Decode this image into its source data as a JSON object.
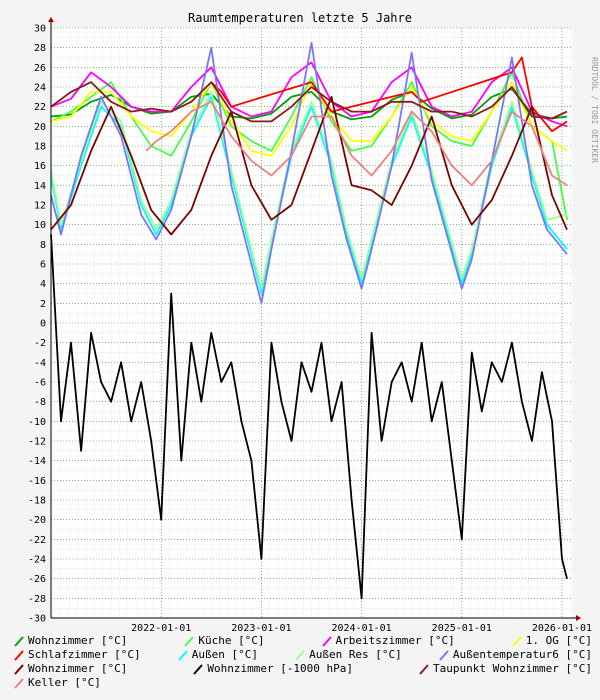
{
  "chart_data": {
    "type": "line",
    "title": "Raumtemperaturen letzte 5 Jahre",
    "side_label": "RRDTOOL / TOBI OETIKER",
    "ylim": [
      -30,
      30
    ],
    "y_ticks": [
      "-30",
      "-28",
      "-26",
      "-24",
      "-22",
      "-20",
      "-18",
      "-16",
      "-14",
      "-12",
      "-10",
      "-8",
      "-6",
      "-4",
      "-2",
      "0",
      "2",
      "4",
      "6",
      "8",
      "10",
      "12",
      "14",
      "16",
      "18",
      "20",
      "22",
      "24",
      "26",
      "28",
      "30"
    ],
    "xlim": [
      2020.9,
      2026.1
    ],
    "x_ticks": [
      {
        "x": 2022.0,
        "label": "2022-01-01"
      },
      {
        "x": 2023.0,
        "label": "2023-01-01"
      },
      {
        "x": 2024.0,
        "label": "2024-01-01"
      },
      {
        "x": 2025.0,
        "label": "2025-01-01"
      },
      {
        "x": 2026.0,
        "label": "2026-01-01"
      }
    ],
    "legend_rows": [
      [
        0,
        1,
        2,
        3
      ],
      [
        4,
        5,
        6,
        7
      ],
      [
        8,
        9,
        10
      ],
      [
        11
      ]
    ],
    "series": [
      {
        "name": "Wohnzimmer [°C]",
        "color": "#00a000",
        "x": [
          2020.9,
          2021.1,
          2021.3,
          2021.5,
          2021.7,
          2021.9,
          2022.1,
          2022.3,
          2022.5,
          2022.7,
          2022.9,
          2023.1,
          2023.3,
          2023.5,
          2023.7,
          2023.9,
          2024.1,
          2024.3,
          2024.5,
          2024.7,
          2024.9,
          2025.1,
          2025.3,
          2025.5,
          2025.7,
          2025.9,
          2026.05
        ],
        "y": [
          21.0,
          21.2,
          22.5,
          23.2,
          22.0,
          21.3,
          21.5,
          23.0,
          23.3,
          21.0,
          20.8,
          21.3,
          23.0,
          23.5,
          21.5,
          20.7,
          21.0,
          22.7,
          23.5,
          21.8,
          20.8,
          21.2,
          23.0,
          23.8,
          21.3,
          20.8,
          21.0
        ]
      },
      {
        "name": "Küche [°C]",
        "color": "#44ff44",
        "x": [
          2020.9,
          2021.1,
          2021.3,
          2021.5,
          2021.7,
          2021.9,
          2022.1,
          2022.3,
          2022.5,
          2022.7,
          2022.9,
          2023.1,
          2023.3,
          2023.5,
          2023.7,
          2023.9,
          2024.1,
          2024.3,
          2024.5,
          2024.7,
          2024.9,
          2025.1,
          2025.3,
          2025.5,
          2025.7,
          2025.9,
          2026.05
        ],
        "y": [
          20.5,
          21.5,
          23.0,
          24.5,
          21.0,
          18.0,
          17.0,
          20.5,
          24.5,
          20.0,
          18.5,
          17.5,
          21.0,
          25.0,
          20.5,
          17.5,
          18.0,
          21.0,
          24.5,
          20.0,
          18.5,
          18.0,
          21.5,
          25.5,
          20.0,
          18.5,
          10.5
        ]
      },
      {
        "name": "Arbeitszimmer [°C]",
        "color": "#ff00ff",
        "x": [
          2020.9,
          2021.1,
          2021.3,
          2021.5,
          2021.7,
          2021.9,
          2022.1,
          2022.3,
          2022.5,
          2022.7,
          2022.9,
          2023.1,
          2023.3,
          2023.5,
          2023.7,
          2023.9,
          2024.1,
          2024.3,
          2024.5,
          2024.7,
          2024.9,
          2025.1,
          2025.3,
          2025.5,
          2025.7,
          2025.9,
          2026.05
        ],
        "y": [
          22.0,
          22.8,
          25.5,
          24.0,
          22.0,
          21.5,
          21.5,
          24.0,
          26.0,
          22.0,
          21.0,
          21.5,
          25.0,
          26.5,
          22.5,
          21.0,
          21.5,
          24.5,
          26.0,
          22.0,
          21.0,
          21.5,
          24.5,
          26.0,
          21.5,
          20.5,
          20.0
        ]
      },
      {
        "name": "1. OG [°C]",
        "color": "#ffff00",
        "x": [
          2020.9,
          2021.1,
          2021.3,
          2021.5,
          2021.7,
          2021.9,
          2022.1,
          2022.3,
          2022.5,
          2022.7,
          2022.9,
          2023.1,
          2023.3,
          2023.5,
          2023.7,
          2023.9,
          2024.1,
          2024.3,
          2024.5,
          2024.7,
          2024.9,
          2025.1,
          2025.3,
          2025.5,
          2025.7,
          2025.9,
          2026.05
        ],
        "y": [
          20.5,
          21.0,
          23.5,
          23.5,
          21.0,
          19.5,
          19.0,
          21.5,
          24.5,
          20.5,
          17.5,
          17.0,
          20.0,
          24.5,
          21.0,
          18.5,
          18.5,
          21.0,
          24.0,
          20.5,
          19.0,
          18.5,
          21.5,
          24.5,
          20.0,
          18.5,
          17.5
        ]
      },
      {
        "name": "Schlafzimmer [°C]",
        "color": "#ff0000",
        "x": [
          2022.5,
          2022.6,
          2022.7,
          2023.5,
          2023.6,
          2023.7,
          2024.5,
          2024.6,
          2025.5,
          2025.6,
          2025.7,
          2025.9,
          2026.05
        ],
        "y": [
          24.5,
          23.5,
          22.0,
          24.5,
          23.0,
          21.5,
          23.5,
          22.5,
          25.5,
          27.0,
          22.0,
          19.5,
          20.5
        ]
      },
      {
        "name": "Außen [°C]",
        "color": "#00ffff",
        "x": [
          2020.9,
          2021.0,
          2021.2,
          2021.4,
          2021.6,
          2021.8,
          2021.95,
          2022.1,
          2022.3,
          2022.5,
          2022.7,
          2022.85,
          2023.0,
          2023.1,
          2023.3,
          2023.5,
          2023.7,
          2023.85,
          2024.0,
          2024.1,
          2024.3,
          2024.5,
          2024.7,
          2024.85,
          2025.0,
          2025.1,
          2025.3,
          2025.5,
          2025.7,
          2025.85,
          2026.05
        ],
        "y": [
          15.0,
          9.5,
          16.0,
          22.0,
          20.0,
          12.0,
          9.0,
          12.0,
          19.0,
          23.0,
          15.0,
          9.0,
          3.0,
          8.0,
          17.0,
          22.0,
          16.0,
          9.0,
          4.0,
          8.0,
          16.0,
          21.0,
          15.0,
          9.5,
          4.0,
          7.0,
          16.0,
          22.0,
          15.0,
          10.0,
          7.5
        ]
      },
      {
        "name": "Außen Res [°C]",
        "color": "#99ff99",
        "x": [
          2020.9,
          2021.0,
          2021.2,
          2021.4,
          2021.6,
          2021.8,
          2021.95,
          2022.1,
          2022.3,
          2022.5,
          2022.7,
          2022.85,
          2023.0,
          2023.1,
          2023.3,
          2023.5,
          2023.7,
          2023.85,
          2024.0,
          2024.1,
          2024.3,
          2024.5,
          2024.7,
          2024.85,
          2025.0,
          2025.1,
          2025.3,
          2025.5,
          2025.7,
          2025.85,
          2026.05
        ],
        "y": [
          15.5,
          10.0,
          16.5,
          22.5,
          20.5,
          12.5,
          9.5,
          12.5,
          19.5,
          23.5,
          15.5,
          9.5,
          3.5,
          8.5,
          17.5,
          22.5,
          16.5,
          9.5,
          4.5,
          8.5,
          16.5,
          21.5,
          15.5,
          10.0,
          4.5,
          7.5,
          16.5,
          22.5,
          15.5,
          10.5,
          11.0
        ]
      },
      {
        "name": "Außentemperatur6 [°C]",
        "color": "#7777ff",
        "x": [
          2020.9,
          2021.0,
          2021.2,
          2021.4,
          2021.6,
          2021.8,
          2021.95,
          2022.1,
          2022.3,
          2022.5,
          2022.7,
          2022.85,
          2023.0,
          2023.1,
          2023.3,
          2023.5,
          2023.7,
          2023.85,
          2024.0,
          2024.1,
          2024.3,
          2024.5,
          2024.7,
          2024.85,
          2025.0,
          2025.1,
          2025.3,
          2025.5,
          2025.7,
          2025.85,
          2026.05
        ],
        "y": [
          13.0,
          9.0,
          17.0,
          23.0,
          19.0,
          11.0,
          8.5,
          11.5,
          19.0,
          28.0,
          14.0,
          8.0,
          2.0,
          7.5,
          17.5,
          28.5,
          15.0,
          8.5,
          3.5,
          7.5,
          16.0,
          27.5,
          14.5,
          9.0,
          3.5,
          6.5,
          16.5,
          27.0,
          14.0,
          9.5,
          7.0
        ]
      },
      {
        "name": "Wohnzimmer [°C]",
        "color": "#800000",
        "x": [
          2020.9,
          2021.1,
          2021.3,
          2021.5,
          2021.7,
          2021.9,
          2022.1,
          2022.3,
          2022.5,
          2022.7,
          2022.9,
          2023.1,
          2023.3,
          2023.5,
          2023.7,
          2023.9,
          2024.1,
          2024.3,
          2024.5,
          2024.7,
          2024.9,
          2025.1,
          2025.3,
          2025.5,
          2025.7,
          2025.9,
          2026.05
        ],
        "y": [
          9.5,
          12.0,
          17.5,
          22.0,
          17.0,
          11.5,
          9.0,
          11.5,
          17.0,
          21.5,
          14.0,
          10.5,
          12.0,
          17.5,
          23.0,
          14.0,
          13.5,
          12.0,
          16.0,
          21.0,
          14.0,
          10.0,
          12.5,
          17.0,
          22.0,
          13.0,
          9.5
        ]
      },
      {
        "name": "Wohnzimmer [-1000 hPa]",
        "color": "#000000",
        "x": [
          2020.9,
          2021.0,
          2021.1,
          2021.2,
          2021.3,
          2021.4,
          2021.5,
          2021.6,
          2021.7,
          2021.8,
          2021.9,
          2022.0,
          2022.1,
          2022.2,
          2022.3,
          2022.4,
          2022.5,
          2022.6,
          2022.7,
          2022.8,
          2022.9,
          2023.0,
          2023.1,
          2023.2,
          2023.3,
          2023.4,
          2023.5,
          2023.6,
          2023.7,
          2023.8,
          2023.9,
          2024.0,
          2024.1,
          2024.2,
          2024.3,
          2024.4,
          2024.5,
          2024.6,
          2024.7,
          2024.8,
          2024.9,
          2025.0,
          2025.1,
          2025.2,
          2025.3,
          2025.4,
          2025.5,
          2025.6,
          2025.7,
          2025.8,
          2025.9,
          2026.0,
          2026.05
        ],
        "y": [
          9.0,
          -10.0,
          -2.0,
          -13.0,
          -1.0,
          -6.0,
          -8.0,
          -4.0,
          -10.0,
          -6.0,
          -12.0,
          -20.0,
          3.0,
          -14.0,
          -2.0,
          -8.0,
          -1.0,
          -6.0,
          -4.0,
          -10.0,
          -14.0,
          -24.0,
          -2.0,
          -8.0,
          -12.0,
          -4.0,
          -7.0,
          -2.0,
          -10.0,
          -6.0,
          -18.0,
          -28.0,
          -1.0,
          -12.0,
          -6.0,
          -4.0,
          -8.0,
          -2.0,
          -10.0,
          -6.0,
          -14.0,
          -22.0,
          -3.0,
          -9.0,
          -4.0,
          -6.0,
          -2.0,
          -8.0,
          -12.0,
          -5.0,
          -10.0,
          -24.0,
          -26.0
        ]
      },
      {
        "name": "Taupunkt Wohnzimmer [°C]",
        "color": "#8b1a1a",
        "x": [
          2020.9,
          2021.1,
          2021.3,
          2021.5,
          2021.7,
          2021.9,
          2022.1,
          2022.3,
          2022.5,
          2022.7,
          2022.9,
          2023.1,
          2023.3,
          2023.5,
          2023.7,
          2023.9,
          2024.1,
          2024.3,
          2024.5,
          2024.7,
          2024.9,
          2025.1,
          2025.3,
          2025.5,
          2025.7,
          2025.9,
          2026.05
        ],
        "y": [
          22.0,
          23.5,
          24.5,
          22.5,
          21.5,
          21.8,
          21.5,
          22.5,
          24.5,
          21.5,
          20.5,
          20.5,
          22.0,
          24.0,
          22.5,
          21.5,
          21.5,
          22.5,
          22.5,
          21.5,
          21.5,
          21.0,
          22.0,
          24.0,
          21.0,
          20.8,
          21.5
        ]
      },
      {
        "name": "Keller [°C]",
        "color": "#f08080",
        "x": [
          2021.85,
          2021.95,
          2022.1,
          2022.3,
          2022.5,
          2022.7,
          2022.9,
          2023.1,
          2023.3,
          2023.5,
          2023.7,
          2023.9,
          2024.1,
          2024.3,
          2024.5,
          2024.7,
          2024.9,
          2025.1,
          2025.3,
          2025.5,
          2025.7,
          2025.9,
          2026.05
        ],
        "y": [
          17.5,
          18.5,
          19.5,
          21.5,
          22.5,
          19.0,
          16.5,
          15.0,
          17.0,
          21.0,
          21.0,
          17.0,
          15.0,
          17.5,
          21.5,
          19.5,
          16.0,
          14.0,
          16.5,
          21.5,
          20.0,
          15.0,
          14.0
        ]
      }
    ]
  }
}
